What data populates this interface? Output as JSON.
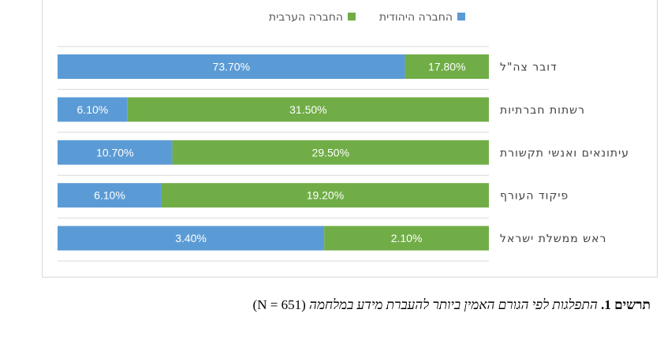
{
  "chart_data": {
    "type": "bar",
    "orientation": "horizontal",
    "stacked": true,
    "stacking": "100%",
    "categories": [
      "דובר צה\"ל",
      "רשתות חברתיות",
      "עיתונאים ואנשי תקשורת",
      "פיקוד העורף",
      "ראש ממשלת ישראל"
    ],
    "series": [
      {
        "name": "החברה היהודית",
        "color": "#5b9bd5",
        "values": [
          73.7,
          6.1,
          10.7,
          6.1,
          3.4
        ],
        "labels": [
          "73.70%",
          "6.10%",
          "10.70%",
          "6.10%",
          "3.40%"
        ]
      },
      {
        "name": "החברה הערבית",
        "color": "#70ad47",
        "values": [
          17.8,
          31.5,
          29.5,
          19.2,
          2.1
        ],
        "labels": [
          "17.80%",
          "31.50%",
          "29.50%",
          "19.20%",
          "2.10%"
        ]
      }
    ],
    "legend_position": "top",
    "grid": true,
    "title": "",
    "xlabel": "",
    "ylabel": ""
  },
  "caption": {
    "prefix": "תרשים 1.",
    "title": "התפלגות לפי הגורם האמין ביותר להעברת מידע במלחמה",
    "n": "(N = 651)"
  }
}
